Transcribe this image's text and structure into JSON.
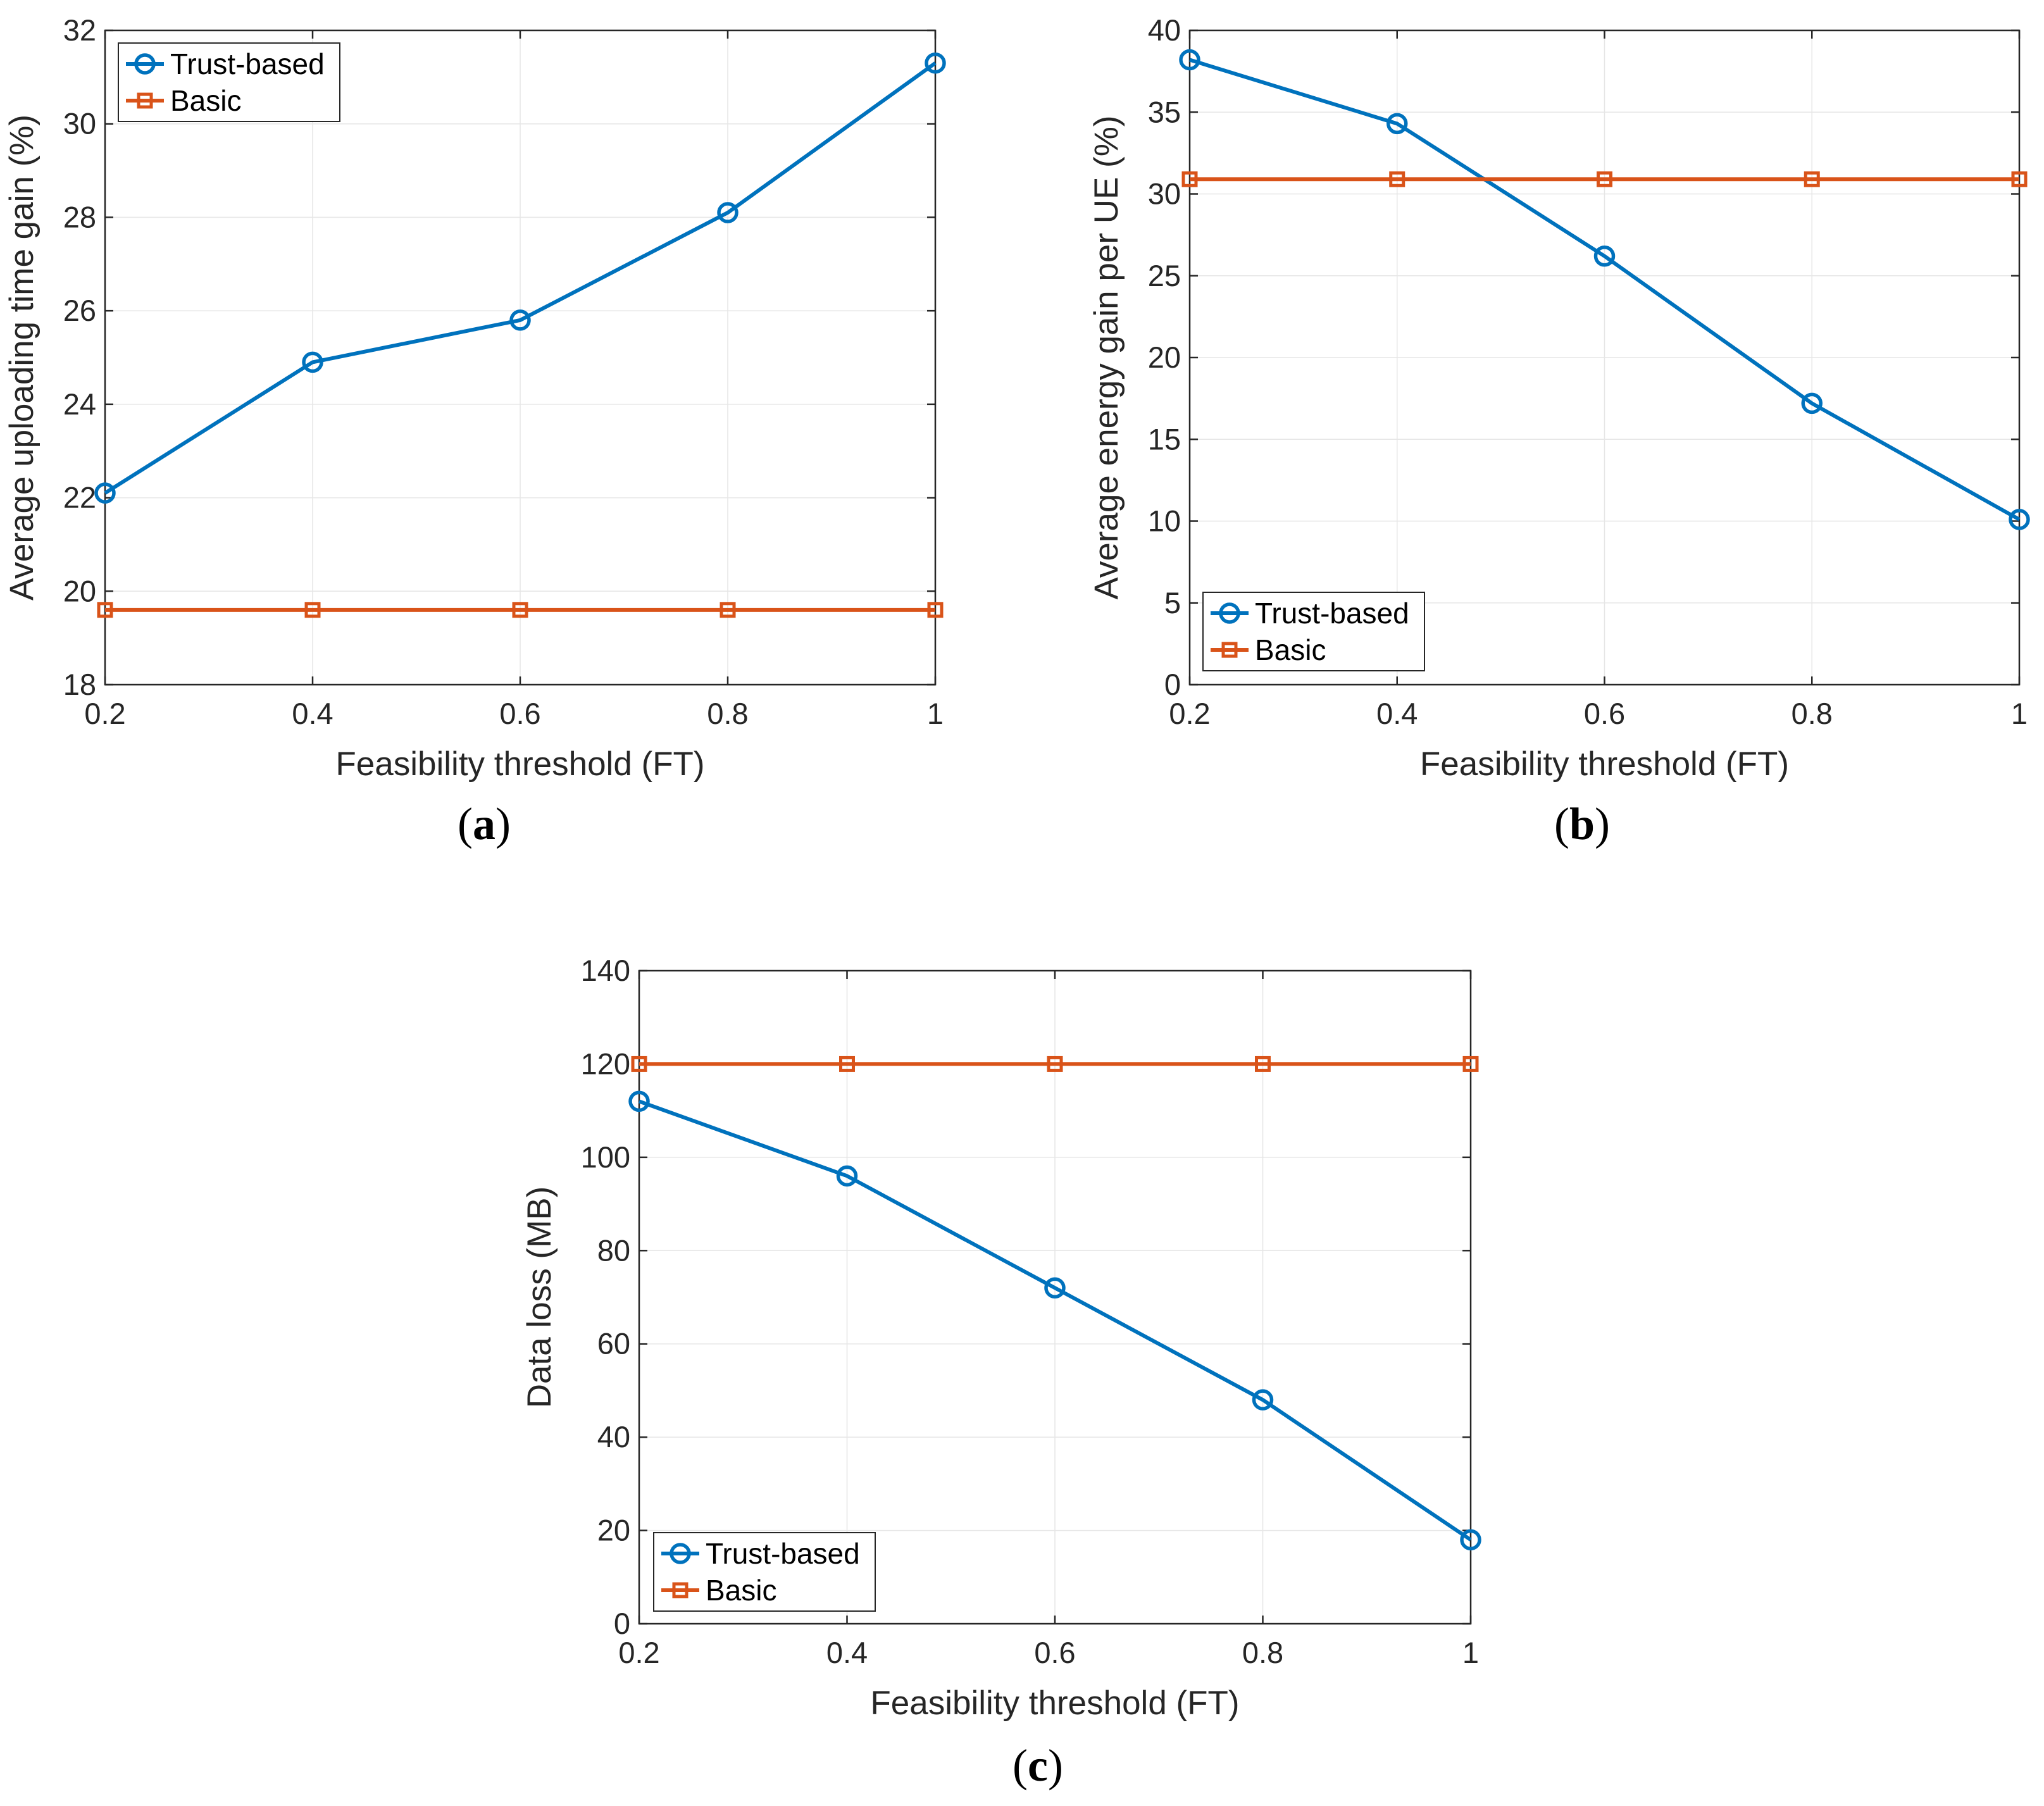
{
  "chart_data": [
    {
      "type": "line",
      "caption": "a",
      "xlabel": "Feasibility threshold (FT)",
      "ylabel": "Average uploading time gain (%)",
      "xlim": [
        0.2,
        1
      ],
      "ylim": [
        18,
        32
      ],
      "x": [
        0.2,
        0.4,
        0.6,
        0.8,
        1
      ],
      "xticks": [
        "0.2",
        "0.4",
        "0.6",
        "0.8",
        "1"
      ],
      "yticks": [
        "18",
        "20",
        "22",
        "24",
        "26",
        "28",
        "30",
        "32"
      ],
      "grid": true,
      "legend_location": "top-left",
      "series": [
        {
          "name": "Trust-based",
          "marker": "circle",
          "color": "#0072BD",
          "values": [
            22.1,
            24.9,
            25.8,
            28.1,
            31.3
          ]
        },
        {
          "name": "Basic",
          "marker": "square",
          "color": "#D95319",
          "values": [
            19.6,
            19.6,
            19.6,
            19.6,
            19.6
          ]
        }
      ]
    },
    {
      "type": "line",
      "caption": "b",
      "xlabel": "Feasibility threshold (FT)",
      "ylabel": "Average energy gain per UE (%)",
      "xlim": [
        0.2,
        1
      ],
      "ylim": [
        0,
        40
      ],
      "x": [
        0.2,
        0.4,
        0.6,
        0.8,
        1
      ],
      "xticks": [
        "0.2",
        "0.4",
        "0.6",
        "0.8",
        "1"
      ],
      "yticks": [
        "0",
        "5",
        "10",
        "15",
        "20",
        "25",
        "30",
        "35",
        "40"
      ],
      "grid": true,
      "legend_location": "bottom-left",
      "series": [
        {
          "name": "Trust-based",
          "marker": "circle",
          "color": "#0072BD",
          "values": [
            38.2,
            34.3,
            26.2,
            17.2,
            10.1
          ]
        },
        {
          "name": "Basic",
          "marker": "square",
          "color": "#D95319",
          "values": [
            30.9,
            30.9,
            30.9,
            30.9,
            30.9
          ]
        }
      ]
    },
    {
      "type": "line",
      "caption": "c",
      "xlabel": "Feasibility threshold (FT)",
      "ylabel": "Data loss (MB)",
      "xlim": [
        0.2,
        1
      ],
      "ylim": [
        0,
        140
      ],
      "x": [
        0.2,
        0.4,
        0.6,
        0.8,
        1
      ],
      "xticks": [
        "0.2",
        "0.4",
        "0.6",
        "0.8",
        "1"
      ],
      "yticks": [
        "0",
        "20",
        "40",
        "60",
        "80",
        "100",
        "120",
        "140"
      ],
      "grid": true,
      "legend_location": "bottom-left",
      "series": [
        {
          "name": "Trust-based",
          "marker": "circle",
          "color": "#0072BD",
          "values": [
            112,
            96,
            72,
            48,
            18
          ]
        },
        {
          "name": "Basic",
          "marker": "square",
          "color": "#D95319",
          "values": [
            120,
            120,
            120,
            120,
            120
          ]
        }
      ]
    }
  ]
}
